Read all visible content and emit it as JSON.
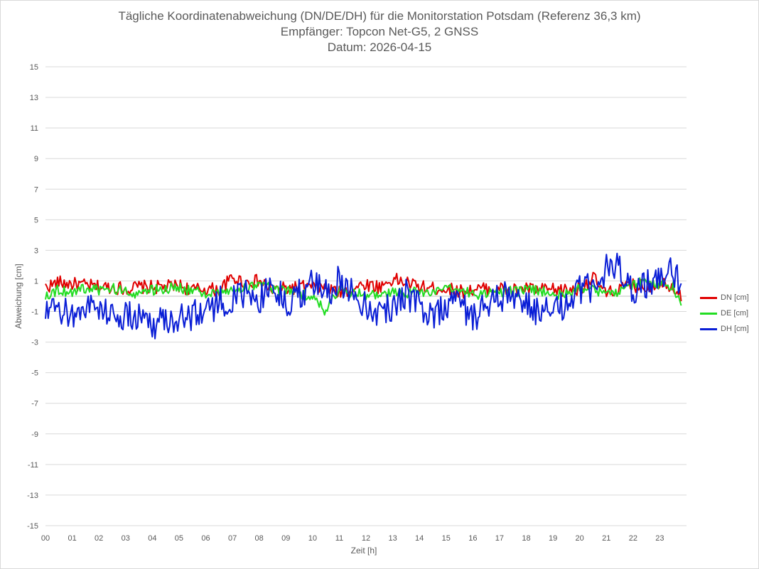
{
  "title": {
    "line1": "Tägliche Koordinatenabweichung (DN/DE/DH) für die Monitorstation Potsdam (Referenz 36,3 km)",
    "line2": "Empfänger: Topcon Net-G5, 2 GNSS",
    "line3": "Datum: 2026-04-15"
  },
  "chart_data": {
    "type": "line",
    "title": "Tägliche Koordinatenabweichung (DN/DE/DH) für die Monitorstation Potsdam (Referenz 36,3 km)",
    "subtitle": [
      "Empfänger: Topcon Net-G5, 2 GNSS",
      "Datum: 2026-04-15"
    ],
    "xlabel": "Zeit [h]",
    "ylabel": "Abweichung [cm]",
    "xlim": [
      0,
      24
    ],
    "ylim": [
      -15,
      15
    ],
    "x_ticks": [
      "00",
      "01",
      "02",
      "03",
      "04",
      "05",
      "06",
      "07",
      "08",
      "09",
      "10",
      "11",
      "12",
      "13",
      "14",
      "15",
      "16",
      "17",
      "18",
      "19",
      "20",
      "21",
      "22",
      "23"
    ],
    "y_ticks": [
      "15",
      "13",
      "11",
      "9",
      "7",
      "5",
      "3",
      "1",
      "-1",
      "-3",
      "-5",
      "-7",
      "-9",
      "-11",
      "-13",
      "-15"
    ],
    "grid": "horizontal",
    "legend_position": "right",
    "x_hours": [
      0,
      0.5,
      1,
      1.5,
      2,
      2.5,
      3,
      3.5,
      4,
      4.5,
      5,
      5.5,
      6,
      6.5,
      7,
      7.5,
      8,
      8.5,
      9,
      9.5,
      10,
      10.5,
      11,
      11.5,
      12,
      12.5,
      13,
      13.5,
      14,
      14.5,
      15,
      15.5,
      16,
      16.5,
      17,
      17.5,
      18,
      18.5,
      19,
      19.5,
      20,
      20.5,
      21,
      21.5,
      22,
      22.5,
      23,
      23.5,
      23.8
    ],
    "series": [
      {
        "name": "DN [cm]",
        "color": "#e00000",
        "values": [
          0.6,
          0.9,
          0.8,
          0.7,
          0.6,
          0.6,
          0.5,
          0.6,
          0.6,
          0.6,
          0.7,
          0.4,
          0.5,
          0.4,
          1.2,
          0.9,
          1.0,
          0.4,
          0.5,
          0.6,
          0.6,
          0.5,
          0.2,
          0.5,
          0.8,
          0.6,
          1.1,
          0.9,
          0.6,
          0.5,
          0.5,
          0.3,
          0.4,
          0.5,
          0.5,
          0.4,
          0.5,
          0.4,
          0.4,
          0.4,
          0.5,
          1.2,
          0.1,
          0.5,
          0.7,
          0.6,
          0.9,
          0.7,
          0.0
        ]
      },
      {
        "name": "DE [cm]",
        "color": "#22dd22",
        "values": [
          0.1,
          0.4,
          0.3,
          0.5,
          0.4,
          0.5,
          0.3,
          0.2,
          0.4,
          0.5,
          0.6,
          0.3,
          0.2,
          0.1,
          0.4,
          0.5,
          0.9,
          0.4,
          0.3,
          0.2,
          0.0,
          -1.0,
          0.6,
          0.2,
          0.1,
          0.0,
          0.2,
          0.2,
          0.3,
          0.2,
          0.4,
          0.5,
          0.2,
          0.1,
          0.3,
          0.3,
          0.4,
          0.4,
          0.2,
          0.1,
          0.5,
          0.6,
          0.0,
          0.4,
          0.8,
          1.0,
          0.8,
          0.6,
          -0.4
        ]
      },
      {
        "name": "DH [cm]",
        "color": "#0a1ed6",
        "values": [
          -1.2,
          -1.0,
          -1.2,
          -0.6,
          -0.8,
          -1.1,
          -1.4,
          -1.3,
          -1.8,
          -1.5,
          -1.4,
          -1.2,
          -0.9,
          -0.4,
          -0.2,
          0.0,
          -0.2,
          0.8,
          -0.6,
          0.2,
          0.8,
          0.1,
          1.2,
          0.2,
          -0.5,
          -1.0,
          -0.7,
          0.3,
          -0.8,
          -1.2,
          -0.5,
          -0.3,
          -1.4,
          -0.6,
          -0.2,
          0.2,
          -0.7,
          -1.0,
          -1.2,
          -0.4,
          0.3,
          0.6,
          1.7,
          1.9,
          0.5,
          0.9,
          0.9,
          1.7,
          1.0
        ]
      }
    ]
  }
}
